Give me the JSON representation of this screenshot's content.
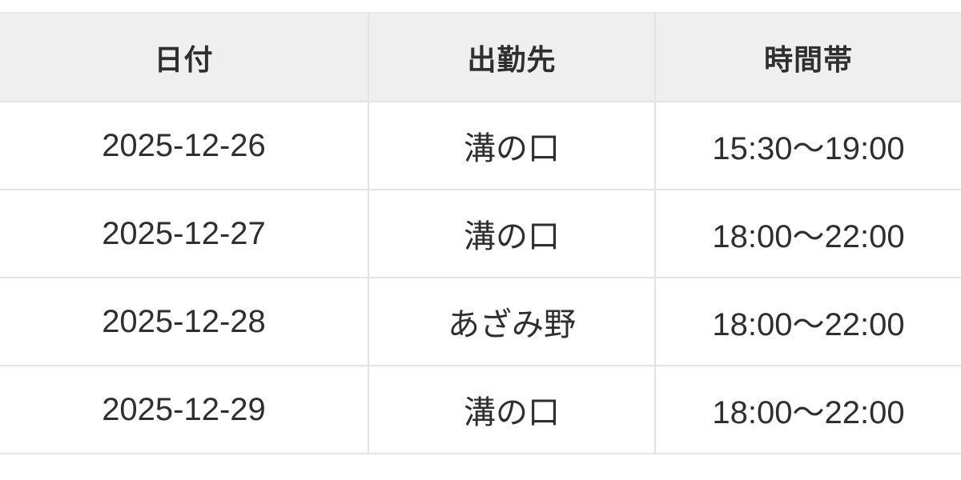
{
  "table": {
    "columns": [
      {
        "key": "date",
        "label": "日付"
      },
      {
        "key": "location",
        "label": "出勤先"
      },
      {
        "key": "time",
        "label": "時間帯"
      }
    ],
    "rows": [
      {
        "date": "2025-12-26",
        "location": "溝の口",
        "time": "15:30〜19:00"
      },
      {
        "date": "2025-12-27",
        "location": "溝の口",
        "time": "18:00〜22:00"
      },
      {
        "date": "2025-12-28",
        "location": "あざみ野",
        "time": "18:00〜22:00"
      },
      {
        "date": "2025-12-29",
        "location": "溝の口",
        "time": "18:00〜22:00"
      }
    ],
    "colors": {
      "header_bg": "#efefef",
      "border": "#e3e3e3",
      "text": "#2f2f2f",
      "page_bg": "#ffffff"
    }
  }
}
